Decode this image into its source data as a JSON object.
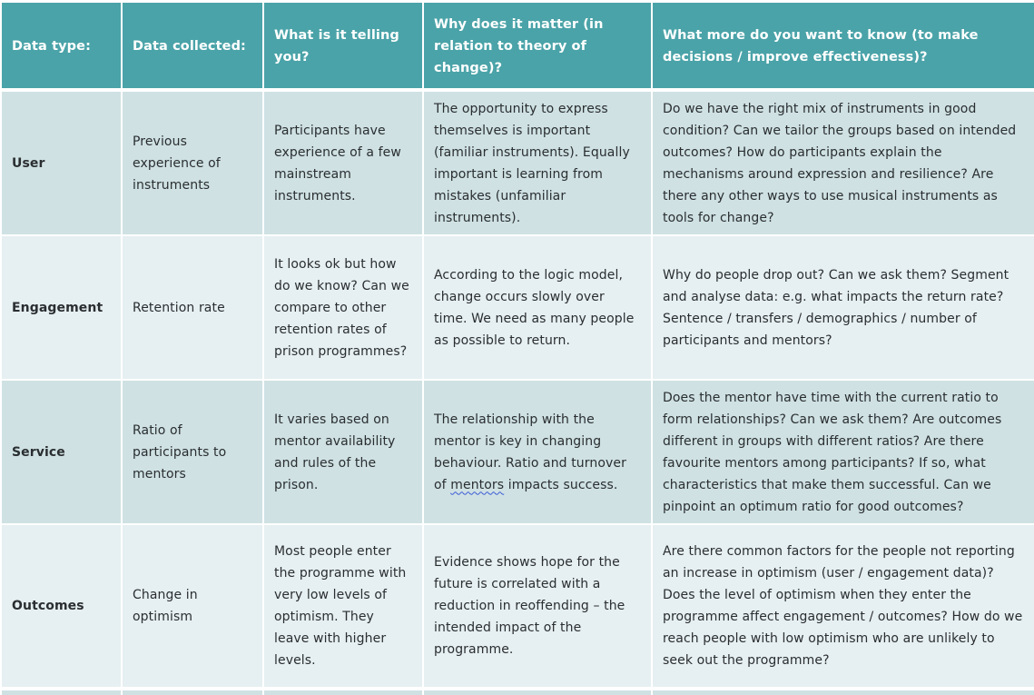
{
  "header": {
    "col1": "Data type:",
    "col2": "Data collected:",
    "col3": "What is it telling you?",
    "col4": "Why does it matter (in relation to theory of change)?",
    "col5": "What more do you want to know (to make decisions / improve effectiveness)?"
  },
  "rows": [
    {
      "type": "User",
      "collected": "Previous experience of instruments",
      "telling": "Participants have experience of a few mainstream instruments.",
      "matter": "The opportunity to express themselves is important (familiar instruments). Equally important is learning from mistakes (unfamiliar instruments).",
      "more": "Do we have the right mix of instruments in good condition? Can we tailor the groups based on intended outcomes? How do participants explain the mechanisms around expression and resilience?  Are there any other ways to use musical instruments as tools for change?"
    },
    {
      "type": "Engagement",
      "collected": "Retention rate",
      "telling": "It looks ok but how do we know? Can we compare to other retention rates of prison programmes?",
      "matter": "According to the logic model, change occurs slowly over time. We need as many people as possible to return.",
      "more": "Why do people drop out? Can we ask them? Segment and analyse data: e.g. what impacts the return rate? Sentence / transfers / demographics / number of participants and mentors?"
    },
    {
      "type": "Service",
      "collected": "Ratio of participants to mentors",
      "telling": "It varies based on mentor availability and rules of the prison.",
      "matter_pre": "The relationship with the mentor is key in changing behaviour. Ratio and turnover of ",
      "matter_mark": "mentors",
      "matter_post": " impacts success.",
      "more": "Does the mentor have time with the current ratio to form relationships? Can we ask them? Are outcomes different in groups with different ratios? Are there favourite mentors among participants? If so, what characteristics that make them successful. Can we pinpoint an optimum ratio for good outcomes?"
    },
    {
      "type": "Outcomes",
      "collected": "Change in optimism",
      "telling": "Most people enter the programme with very low levels of optimism. They leave with higher levels.",
      "matter": "Evidence shows hope for the future is correlated with a reduction in reoffending – the intended impact of the programme.",
      "more": "Are there common factors for the people not reporting an increase in optimism (user / engagement data)? Does the level of optimism when they enter the programme affect engagement / outcomes? How do we reach people with low optimism who are unlikely to seek out the programme?"
    }
  ],
  "colors": {
    "header": "#4aa3a8",
    "row_dark": "#cfe1e3",
    "row_light": "#e6eff1"
  }
}
